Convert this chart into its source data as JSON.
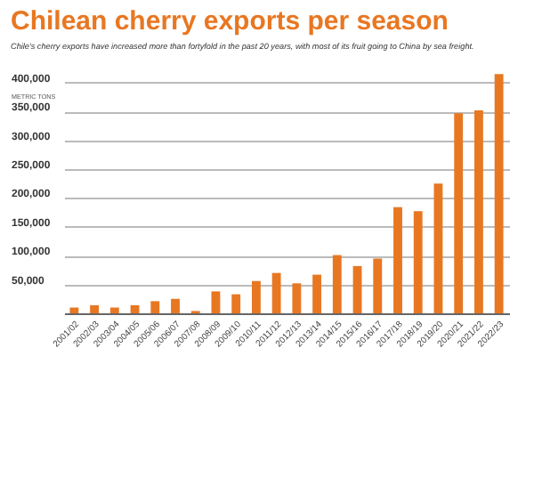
{
  "chart_data": {
    "type": "bar",
    "title": "Chilean cherry exports per season",
    "subtitle": "Chile's cherry exports have increased more than fortyfold in the past 20 years, with most of its fruit going to China by sea freight.",
    "ylabel": "METRIC TONS",
    "categories": [
      "2001/02",
      "2002/03",
      "2003/04",
      "2004/05",
      "2005/06",
      "2006/07",
      "2007/08",
      "2008/09",
      "2009/10",
      "2010/11",
      "2011/12",
      "2012/13",
      "2013/14",
      "2014/15",
      "2015/16",
      "2016/17",
      "2017/18",
      "2018/19",
      "2019/20",
      "2020/21",
      "2021/22",
      "2022/23"
    ],
    "values": [
      10000,
      14000,
      10000,
      14000,
      21000,
      25000,
      4000,
      38000,
      33000,
      56000,
      70000,
      52000,
      67000,
      101000,
      82000,
      95000,
      184000,
      177000,
      225000,
      347000,
      352000,
      415000
    ],
    "color": "#e87722",
    "ylim": [
      0,
      420000
    ],
    "yticks": [
      {
        "value": 50000,
        "label": "50,000"
      },
      {
        "value": 100000,
        "label": "100,000"
      },
      {
        "value": 150000,
        "label": "150,000"
      },
      {
        "value": 200000,
        "label": "200,000"
      },
      {
        "value": 250000,
        "label": "250,000"
      },
      {
        "value": 300000,
        "label": "300,000"
      },
      {
        "value": 350000,
        "label": "350,000"
      },
      {
        "value": 400000,
        "label": "400,000"
      }
    ],
    "grid": "y"
  }
}
